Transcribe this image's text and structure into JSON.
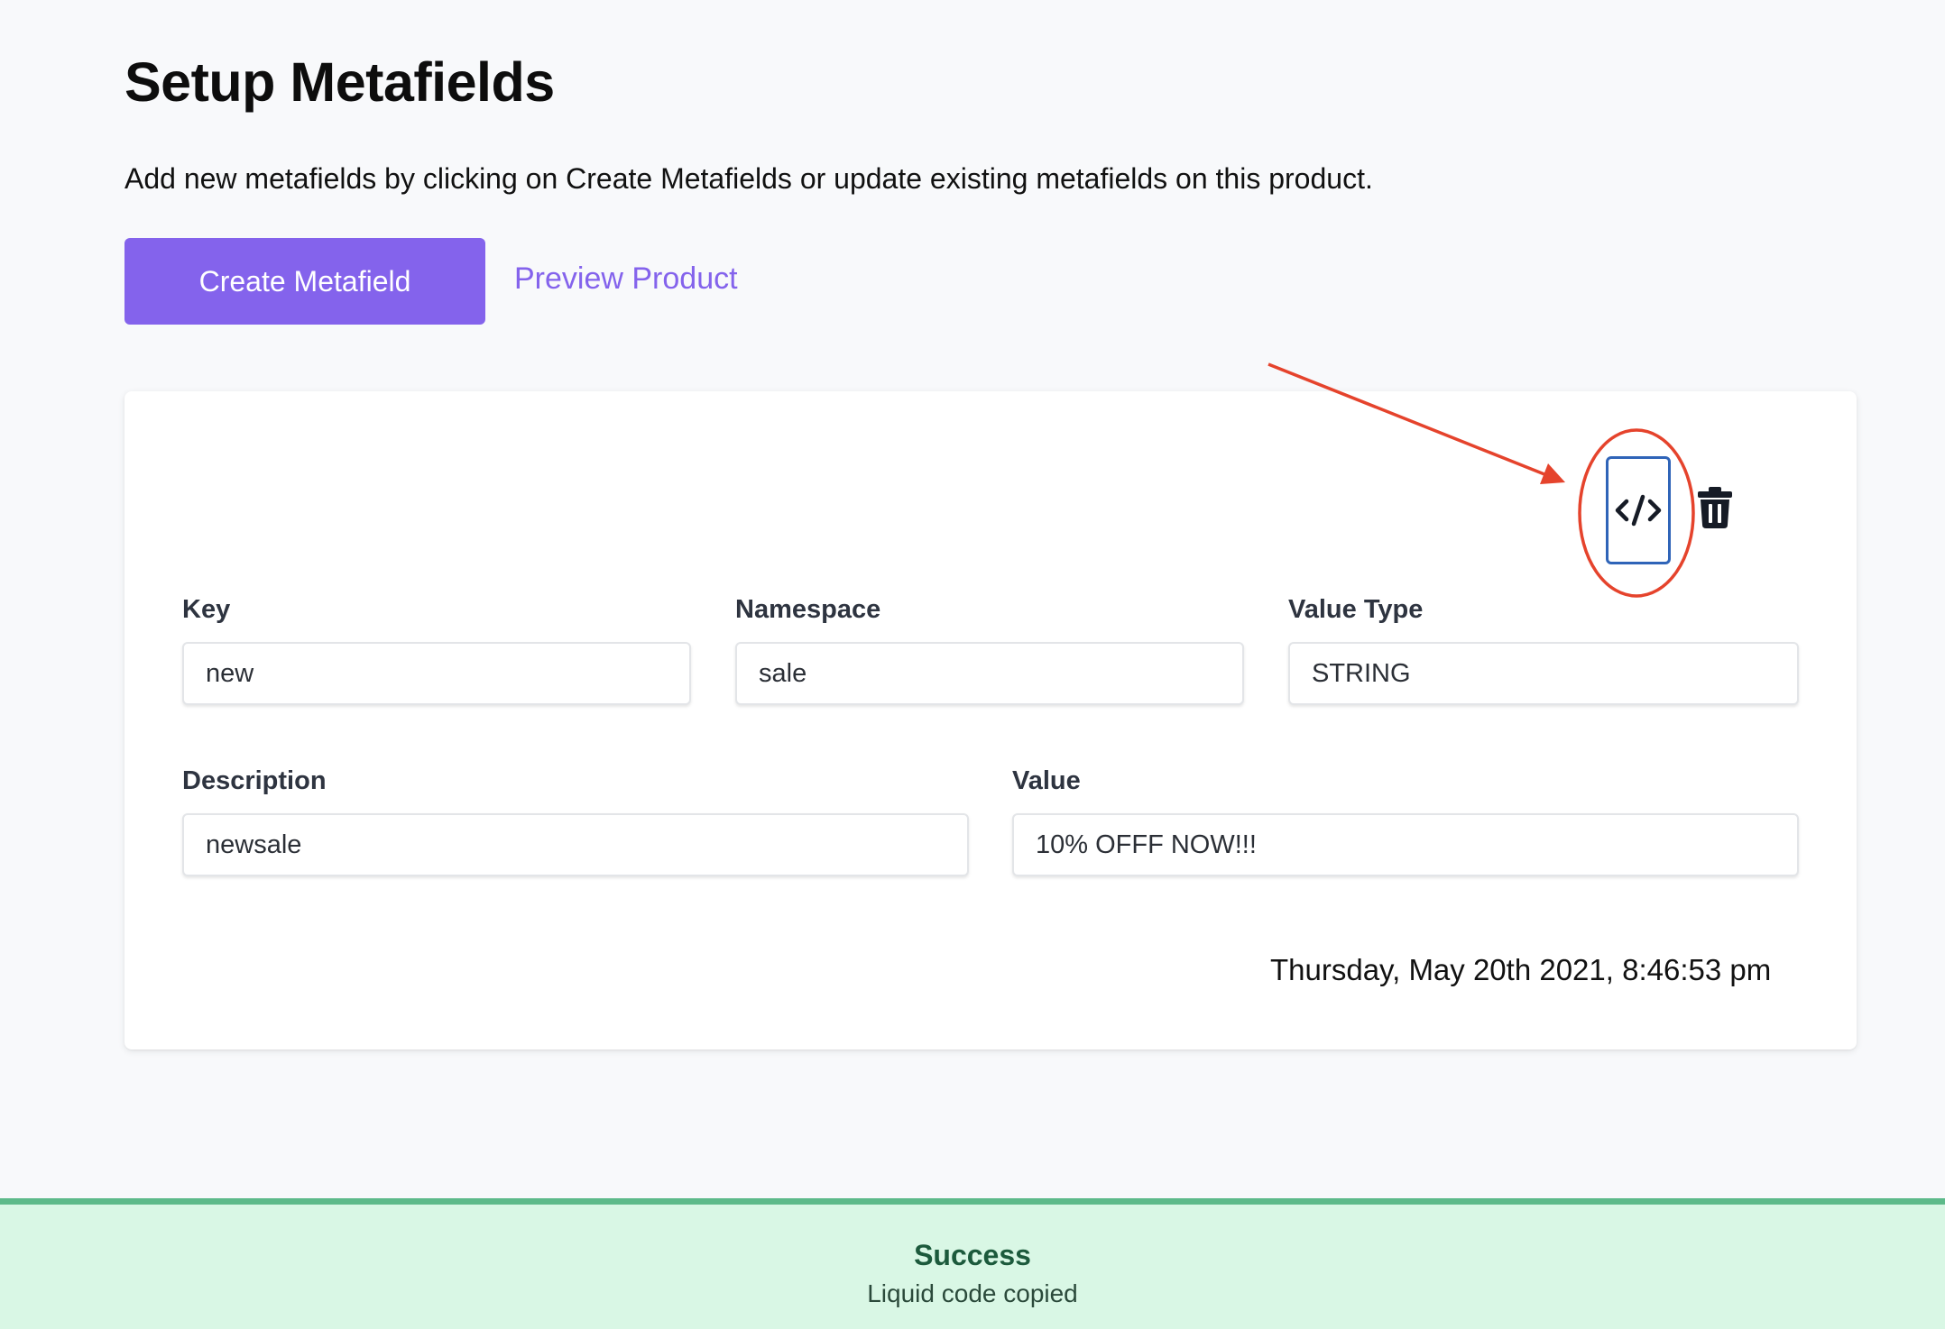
{
  "header": {
    "title": "Setup Metafields",
    "description": "Add new metafields by clicking on Create Metafields or update existing metafields on this product."
  },
  "actions": {
    "create_label": "Create Metafield",
    "preview_label": "Preview Product"
  },
  "metafield": {
    "key": {
      "label": "Key",
      "value": "new"
    },
    "namespace": {
      "label": "Namespace",
      "value": "sale"
    },
    "value_type": {
      "label": "Value Type",
      "value": "STRING"
    },
    "description": {
      "label": "Description",
      "value": "newsale"
    },
    "value": {
      "label": "Value",
      "value": "10% OFFF NOW!!!"
    },
    "timestamp": "Thursday, May 20th 2021, 8:46:53 pm",
    "icons": [
      "code-icon",
      "trash-icon"
    ]
  },
  "toast": {
    "title": "Success",
    "message": "Liquid code copied"
  },
  "colors": {
    "accent": "#8463ec",
    "annotation": "#e5432c",
    "code_button_border": "#2f64b8",
    "toast_background": "#d9f7e5",
    "toast_border": "#5dba8a"
  }
}
